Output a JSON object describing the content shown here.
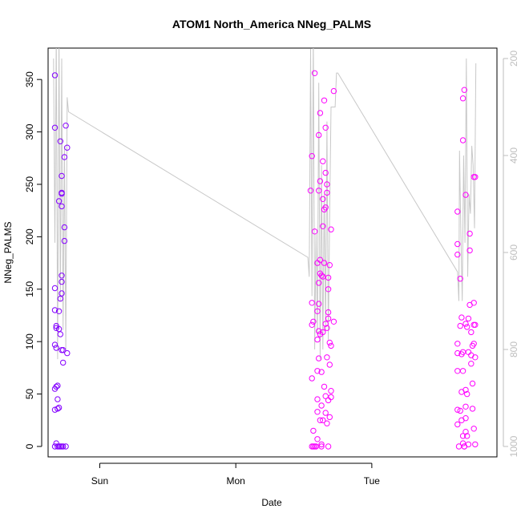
{
  "chart_data": {
    "type": "scatter",
    "title": "ATOM1 North_America NNeg_PALMS",
    "xlabel": "Date",
    "ylabel": "NNeg_PALMS",
    "x_ticks": [
      "Sun",
      "Mon",
      "Tue"
    ],
    "ylim": [
      0,
      370
    ],
    "y_ticks": [
      0,
      50,
      100,
      150,
      200,
      250,
      300,
      350
    ],
    "right_axis": {
      "label": "",
      "ylim": [
        1000,
        200
      ],
      "ticks": [
        200,
        400,
        600,
        800,
        1000
      ],
      "color": "#bebebe",
      "reversed": true
    },
    "x_range_days": [
      -0.38,
      2.92
    ],
    "colors": {
      "early": "#7f00ff",
      "late": "#ff00ff",
      "line": "#c8c8c8"
    },
    "points": [
      [
        -0.33,
        354
      ],
      [
        -0.33,
        304
      ],
      [
        -0.33,
        151
      ],
      [
        -0.33,
        130
      ],
      [
        -0.32,
        115
      ],
      [
        -0.32,
        113
      ],
      [
        -0.33,
        97
      ],
      [
        -0.32,
        94
      ],
      [
        -0.33,
        55
      ],
      [
        -0.32,
        57
      ],
      [
        -0.31,
        58
      ],
      [
        -0.31,
        45
      ],
      [
        -0.31,
        36
      ],
      [
        -0.33,
        35
      ],
      [
        -0.3,
        37
      ],
      [
        -0.32,
        3
      ],
      [
        -0.33,
        0
      ],
      [
        -0.31,
        0
      ],
      [
        -0.3,
        0
      ],
      [
        -0.29,
        0
      ],
      [
        -0.28,
        0
      ],
      [
        -0.27,
        0
      ],
      [
        -0.25,
        0
      ],
      [
        -0.3,
        234
      ],
      [
        -0.3,
        129
      ],
      [
        -0.3,
        112
      ],
      [
        -0.29,
        107
      ],
      [
        -0.29,
        291
      ],
      [
        -0.28,
        258
      ],
      [
        -0.28,
        242
      ],
      [
        -0.28,
        241
      ],
      [
        -0.28,
        229
      ],
      [
        -0.28,
        163
      ],
      [
        -0.28,
        157
      ],
      [
        -0.28,
        146
      ],
      [
        -0.29,
        141
      ],
      [
        -0.28,
        92
      ],
      [
        -0.27,
        92
      ],
      [
        -0.27,
        80
      ],
      [
        -0.26,
        276
      ],
      [
        -0.26,
        209
      ],
      [
        -0.26,
        196
      ],
      [
        -0.25,
        306
      ],
      [
        -0.24,
        285
      ],
      [
        -0.24,
        89
      ],
      [
        1.56,
        277
      ],
      [
        1.55,
        244
      ],
      [
        1.56,
        137
      ],
      [
        1.56,
        116
      ],
      [
        1.57,
        119
      ],
      [
        1.56,
        65
      ],
      [
        1.57,
        15
      ],
      [
        1.56,
        0
      ],
      [
        1.57,
        0
      ],
      [
        1.58,
        0
      ],
      [
        1.58,
        205
      ],
      [
        1.58,
        356
      ],
      [
        1.59,
        0
      ],
      [
        1.6,
        175
      ],
      [
        1.6,
        129
      ],
      [
        1.6,
        102
      ],
      [
        1.6,
        72
      ],
      [
        1.6,
        45
      ],
      [
        1.6,
        33
      ],
      [
        1.6,
        7
      ],
      [
        1.61,
        297
      ],
      [
        1.61,
        244
      ],
      [
        1.61,
        156
      ],
      [
        1.61,
        136
      ],
      [
        1.61,
        110
      ],
      [
        1.61,
        84
      ],
      [
        1.62,
        318
      ],
      [
        1.62,
        253
      ],
      [
        1.62,
        178
      ],
      [
        1.62,
        165
      ],
      [
        1.62,
        107
      ],
      [
        1.62,
        25
      ],
      [
        1.63,
        163
      ],
      [
        1.63,
        71
      ],
      [
        1.63,
        39
      ],
      [
        1.63,
        2
      ],
      [
        1.63,
        0
      ],
      [
        1.64,
        272
      ],
      [
        1.64,
        236
      ],
      [
        1.64,
        210
      ],
      [
        1.64,
        162
      ],
      [
        1.64,
        109
      ],
      [
        1.64,
        25
      ],
      [
        1.65,
        330
      ],
      [
        1.65,
        226
      ],
      [
        1.65,
        175
      ],
      [
        1.65,
        57
      ],
      [
        1.66,
        304
      ],
      [
        1.66,
        261
      ],
      [
        1.66,
        228
      ],
      [
        1.66,
        117
      ],
      [
        1.66,
        48
      ],
      [
        1.66,
        32
      ],
      [
        1.67,
        250
      ],
      [
        1.67,
        242
      ],
      [
        1.67,
        113
      ],
      [
        1.67,
        85
      ],
      [
        1.67,
        22
      ],
      [
        1.68,
        161
      ],
      [
        1.68,
        150
      ],
      [
        1.68,
        128
      ],
      [
        1.68,
        122
      ],
      [
        1.68,
        44
      ],
      [
        1.68,
        0
      ],
      [
        1.69,
        173
      ],
      [
        1.69,
        78
      ],
      [
        1.69,
        28
      ],
      [
        1.69,
        99
      ],
      [
        1.7,
        207
      ],
      [
        1.7,
        96
      ],
      [
        1.7,
        53
      ],
      [
        1.7,
        47
      ],
      [
        1.72,
        339
      ],
      [
        1.72,
        119
      ],
      [
        2.63,
        224
      ],
      [
        2.63,
        183
      ],
      [
        2.63,
        193
      ],
      [
        2.63,
        98
      ],
      [
        2.63,
        89
      ],
      [
        2.63,
        72
      ],
      [
        2.63,
        35
      ],
      [
        2.63,
        21
      ],
      [
        2.64,
        0
      ],
      [
        2.65,
        160
      ],
      [
        2.65,
        115
      ],
      [
        2.65,
        34
      ],
      [
        2.66,
        123
      ],
      [
        2.66,
        88
      ],
      [
        2.66,
        52
      ],
      [
        2.66,
        25
      ],
      [
        2.67,
        332
      ],
      [
        2.67,
        292
      ],
      [
        2.67,
        90
      ],
      [
        2.67,
        72
      ],
      [
        2.67,
        10
      ],
      [
        2.67,
        3
      ],
      [
        2.68,
        0
      ],
      [
        2.68,
        340
      ],
      [
        2.68,
        0
      ],
      [
        2.69,
        240
      ],
      [
        2.69,
        117
      ],
      [
        2.69,
        54
      ],
      [
        2.69,
        38
      ],
      [
        2.69,
        27
      ],
      [
        2.69,
        14
      ],
      [
        2.7,
        50
      ],
      [
        2.7,
        10
      ],
      [
        2.7,
        114
      ],
      [
        2.71,
        122
      ],
      [
        2.71,
        90
      ],
      [
        2.71,
        2
      ],
      [
        2.72,
        203
      ],
      [
        2.72,
        187
      ],
      [
        2.72,
        135
      ],
      [
        2.73,
        109
      ],
      [
        2.73,
        79
      ],
      [
        2.73,
        87
      ],
      [
        2.74,
        96
      ],
      [
        2.74,
        60
      ],
      [
        2.74,
        36
      ],
      [
        2.75,
        116
      ],
      [
        2.75,
        98
      ],
      [
        2.75,
        17
      ],
      [
        2.75,
        137
      ],
      [
        2.75,
        257
      ],
      [
        2.76,
        257
      ],
      [
        2.76,
        116
      ],
      [
        2.76,
        85
      ],
      [
        2.76,
        2
      ]
    ],
    "line_right_axis": [
      [
        -0.34,
        200
      ],
      [
        -0.33,
        580
      ],
      [
        -0.32,
        150
      ],
      [
        -0.31,
        820
      ],
      [
        -0.3,
        150
      ],
      [
        -0.29,
        700
      ],
      [
        -0.28,
        200
      ],
      [
        -0.27,
        760
      ],
      [
        -0.26,
        380
      ],
      [
        -0.25,
        800
      ],
      [
        -0.24,
        280
      ],
      [
        -0.23,
        310
      ],
      [
        1.53,
        610
      ],
      [
        1.54,
        650
      ],
      [
        1.55,
        180
      ],
      [
        1.56,
        690
      ],
      [
        1.57,
        150
      ],
      [
        1.58,
        800
      ],
      [
        1.59,
        560
      ],
      [
        1.6,
        770
      ],
      [
        1.61,
        250
      ],
      [
        1.62,
        820
      ],
      [
        1.63,
        420
      ],
      [
        1.64,
        800
      ],
      [
        1.65,
        480
      ],
      [
        1.66,
        760
      ],
      [
        1.67,
        330
      ],
      [
        1.68,
        780
      ],
      [
        1.69,
        520
      ],
      [
        1.7,
        300
      ],
      [
        1.71,
        300
      ],
      [
        1.72,
        300
      ],
      [
        1.73,
        300
      ],
      [
        1.74,
        230
      ],
      [
        1.75,
        230
      ],
      [
        2.63,
        640
      ],
      [
        2.64,
        700
      ],
      [
        2.645,
        390
      ],
      [
        2.655,
        560
      ],
      [
        2.665,
        700
      ],
      [
        2.675,
        400
      ],
      [
        2.685,
        580
      ],
      [
        2.695,
        200
      ],
      [
        2.705,
        650
      ],
      [
        2.715,
        480
      ],
      [
        2.725,
        520
      ],
      [
        2.735,
        380
      ],
      [
        2.745,
        420
      ],
      [
        2.755,
        550
      ],
      [
        2.765,
        210
      ]
    ]
  }
}
